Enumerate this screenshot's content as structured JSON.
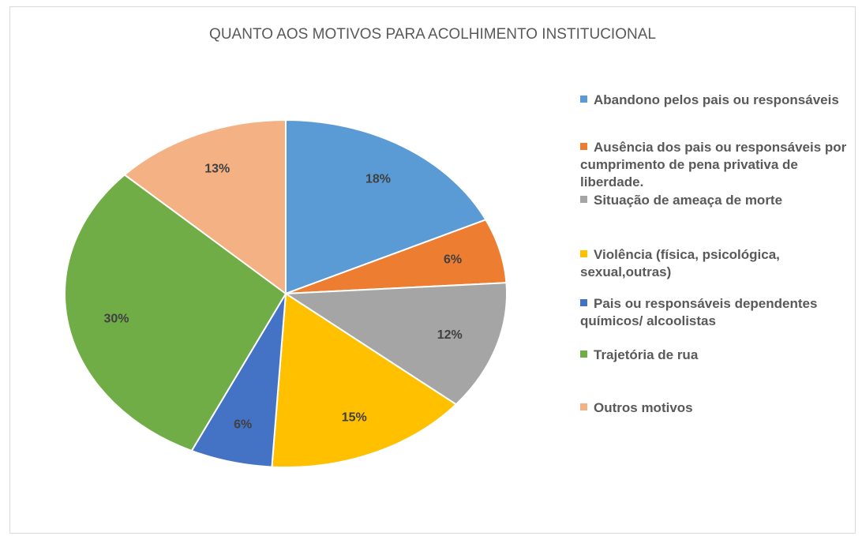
{
  "chart_data": {
    "type": "pie",
    "title": "QUANTO AOS MOTIVOS PARA ACOLHIMENTO INSTITUCIONAL",
    "categories": [
      "Abandono pelos pais ou responsáveis",
      "Ausência dos pais ou responsáveis por cumprimento de pena privativa de liberdade.",
      "Situação de ameaça de morte",
      "Violência (física, psicológica, sexual,outras)",
      "Pais ou responsáveis dependentes químicos/ alcoolistas",
      "Trajetória de rua",
      "Outros motivos"
    ],
    "values": [
      18,
      6,
      12,
      15,
      6,
      30,
      13
    ],
    "value_labels": [
      "18%",
      "6%",
      "12%",
      "15%",
      "6%",
      "30%",
      "13%"
    ],
    "colors": [
      "#5b9bd5",
      "#ed7d31",
      "#a5a5a5",
      "#ffc000",
      "#4472c4",
      "#70ad47",
      "#f4b183"
    ]
  }
}
